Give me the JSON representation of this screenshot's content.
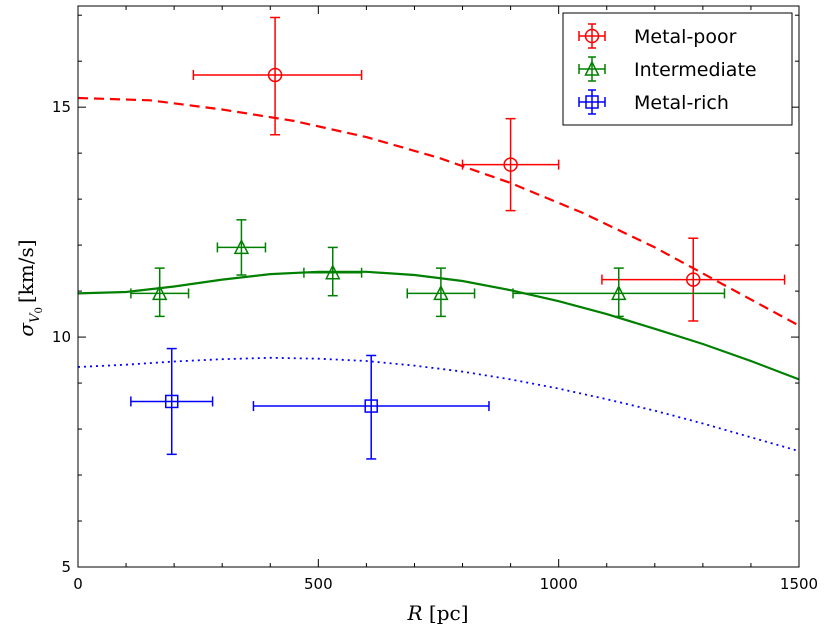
{
  "chart_data": {
    "type": "scatter",
    "xlabel": "R [pc]",
    "xlabel_italic": "R",
    "xlabel_unit": "[pc]",
    "ylabel_symbol": "σ",
    "ylabel_sub": "V",
    "ylabel_subsub": "0",
    "ylabel_unit": "[km/s]",
    "xlim": [
      0,
      1500
    ],
    "ylim": [
      5,
      17.2
    ],
    "xticks": [
      0,
      500,
      1000,
      1500
    ],
    "yticks": [
      5,
      10,
      15
    ],
    "xtick_labels": [
      "0",
      "500",
      "1000",
      "1500"
    ],
    "ytick_labels": [
      "5",
      "10",
      "15"
    ],
    "legend_position": "top-right",
    "series": [
      {
        "name": "Metal-poor",
        "color": "#ff0000",
        "marker": "circle",
        "points": [
          {
            "x": 410,
            "y": 15.7,
            "xerr_low": 170,
            "xerr_high": 180,
            "yerr_low": 1.3,
            "yerr_high": 1.25
          },
          {
            "x": 900,
            "y": 13.75,
            "xerr_low": 100,
            "xerr_high": 100,
            "yerr_low": 1.0,
            "yerr_high": 1.0
          },
          {
            "x": 1280,
            "y": 11.25,
            "xerr_low": 190,
            "xerr_high": 190,
            "yerr_low": 0.9,
            "yerr_high": 0.9
          }
        ],
        "model": {
          "style": "dashed",
          "x": [
            0,
            150,
            300,
            450,
            600,
            750,
            900,
            1050,
            1200,
            1350,
            1500
          ],
          "y": [
            15.2,
            15.15,
            14.95,
            14.7,
            14.35,
            13.9,
            13.35,
            12.7,
            11.95,
            11.1,
            10.25
          ]
        }
      },
      {
        "name": "Intermediate",
        "color": "#008000",
        "marker": "triangle",
        "points": [
          {
            "x": 170,
            "y": 10.95,
            "xerr_low": 60,
            "xerr_high": 60,
            "yerr_low": 0.5,
            "yerr_high": 0.55
          },
          {
            "x": 340,
            "y": 11.95,
            "xerr_low": 50,
            "xerr_high": 50,
            "yerr_low": 0.6,
            "yerr_high": 0.6
          },
          {
            "x": 530,
            "y": 11.4,
            "xerr_low": 60,
            "xerr_high": 60,
            "yerr_low": 0.5,
            "yerr_high": 0.55
          },
          {
            "x": 755,
            "y": 10.95,
            "xerr_low": 70,
            "xerr_high": 70,
            "yerr_low": 0.5,
            "yerr_high": 0.55
          },
          {
            "x": 1125,
            "y": 10.95,
            "xerr_low": 220,
            "xerr_high": 220,
            "yerr_low": 0.5,
            "yerr_high": 0.55
          }
        ],
        "model": {
          "style": "solid",
          "x": [
            0,
            100,
            200,
            300,
            400,
            500,
            600,
            700,
            800,
            900,
            1000,
            1100,
            1200,
            1300,
            1400,
            1500
          ],
          "y": [
            10.95,
            10.98,
            11.1,
            11.25,
            11.37,
            11.42,
            11.42,
            11.35,
            11.22,
            11.02,
            10.78,
            10.5,
            10.18,
            9.85,
            9.48,
            9.08
          ]
        }
      },
      {
        "name": "Metal-rich",
        "color": "#0000ff",
        "marker": "square",
        "points": [
          {
            "x": 195,
            "y": 8.6,
            "xerr_low": 85,
            "xerr_high": 85,
            "yerr_low": 1.15,
            "yerr_high": 1.15
          },
          {
            "x": 610,
            "y": 8.5,
            "xerr_low": 245,
            "xerr_high": 245,
            "yerr_low": 1.15,
            "yerr_high": 1.1
          }
        ],
        "model": {
          "style": "dotted",
          "x": [
            0,
            100,
            200,
            300,
            400,
            500,
            600,
            700,
            800,
            900,
            1000,
            1100,
            1200,
            1300,
            1400,
            1500
          ],
          "y": [
            9.35,
            9.4,
            9.47,
            9.52,
            9.55,
            9.53,
            9.48,
            9.38,
            9.25,
            9.08,
            8.88,
            8.65,
            8.4,
            8.12,
            7.82,
            7.52
          ]
        }
      }
    ]
  }
}
